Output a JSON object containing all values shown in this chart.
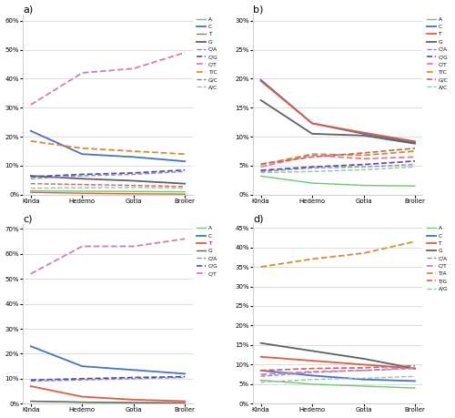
{
  "x_labels": [
    "Kinda",
    "Hedemo",
    "Gotia",
    "Broiler"
  ],
  "subplot_a": {
    "title": "a)",
    "ylim": [
      0,
      0.62
    ],
    "yticks": [
      0.0,
      0.1,
      0.2,
      0.3,
      0.4,
      0.5,
      0.6
    ],
    "ytick_labels": [
      "0%",
      "10%",
      "20%",
      "30%",
      "40%",
      "50%",
      "60%"
    ],
    "series": {
      "A": {
        "values": [
          0.013,
          0.012,
          0.011,
          0.01
        ],
        "color": "#6dc96d",
        "ls": "solid",
        "lw": 1.0
      },
      "C": {
        "values": [
          0.22,
          0.14,
          0.13,
          0.115
        ],
        "color": "#4472c4",
        "ls": "solid",
        "lw": 1.3
      },
      "T": {
        "values": [
          0.008,
          0.005,
          0.003,
          0.002
        ],
        "color": "#e05c3c",
        "ls": "solid",
        "lw": 1.0
      },
      "G": {
        "values": [
          0.065,
          0.055,
          0.048,
          0.038
        ],
        "color": "#606060",
        "ls": "solid",
        "lw": 1.3
      },
      "C/A": {
        "values": [
          0.055,
          0.065,
          0.07,
          0.08
        ],
        "color": "#8888dd",
        "ls": "dashed",
        "lw": 1.0
      },
      "C/G": {
        "values": [
          0.062,
          0.07,
          0.075,
          0.085
        ],
        "color": "#505090",
        "ls": "dashed",
        "lw": 1.2
      },
      "C/T": {
        "values": [
          0.31,
          0.42,
          0.435,
          0.49
        ],
        "color": "#d080b0",
        "ls": "dashed",
        "lw": 1.3
      },
      "T/C": {
        "values": [
          0.185,
          0.16,
          0.15,
          0.14
        ],
        "color": "#d09030",
        "ls": "dashed",
        "lw": 1.3
      },
      "G/C": {
        "values": [
          0.038,
          0.035,
          0.032,
          0.028
        ],
        "color": "#d06060",
        "ls": "dashed",
        "lw": 1.0
      },
      "A/C": {
        "values": [
          0.022,
          0.024,
          0.025,
          0.023
        ],
        "color": "#90c890",
        "ls": "dashed",
        "lw": 1.0
      }
    }
  },
  "subplot_b": {
    "title": "b)",
    "ylim": [
      0,
      0.31
    ],
    "yticks": [
      0.0,
      0.05,
      0.1,
      0.15,
      0.2,
      0.25,
      0.3
    ],
    "ytick_labels": [
      "0%",
      "5%",
      "10%",
      "15%",
      "20%",
      "25%",
      "30%"
    ],
    "series": {
      "A": {
        "values": [
          0.032,
          0.02,
          0.016,
          0.015
        ],
        "color": "#6dc96d",
        "ls": "solid",
        "lw": 1.0
      },
      "C": {
        "values": [
          0.198,
          0.123,
          0.105,
          0.09
        ],
        "color": "#4472c4",
        "ls": "solid",
        "lw": 1.3
      },
      "T": {
        "values": [
          0.196,
          0.123,
          0.107,
          0.092
        ],
        "color": "#e05c3c",
        "ls": "solid",
        "lw": 1.3
      },
      "G": {
        "values": [
          0.163,
          0.105,
          0.102,
          0.088
        ],
        "color": "#606060",
        "ls": "solid",
        "lw": 1.3
      },
      "C/A": {
        "values": [
          0.04,
          0.046,
          0.048,
          0.052
        ],
        "color": "#8888dd",
        "ls": "dashed",
        "lw": 1.0
      },
      "C/G": {
        "values": [
          0.042,
          0.048,
          0.052,
          0.058
        ],
        "color": "#505090",
        "ls": "dashed",
        "lw": 1.2
      },
      "C/T": {
        "values": [
          0.048,
          0.068,
          0.062,
          0.065
        ],
        "color": "#d080b0",
        "ls": "dashed",
        "lw": 1.3
      },
      "T/C": {
        "values": [
          0.052,
          0.07,
          0.068,
          0.075
        ],
        "color": "#d09030",
        "ls": "dashed",
        "lw": 1.3
      },
      "G/C": {
        "values": [
          0.053,
          0.065,
          0.072,
          0.08
        ],
        "color": "#d06060",
        "ls": "dashed",
        "lw": 1.2
      },
      "A/C": {
        "values": [
          0.038,
          0.04,
          0.043,
          0.048
        ],
        "color": "#90c890",
        "ls": "dashed",
        "lw": 1.0
      }
    }
  },
  "subplot_c": {
    "title": "c)",
    "ylim": [
      0,
      0.72
    ],
    "yticks": [
      0.0,
      0.1,
      0.2,
      0.3,
      0.4,
      0.5,
      0.6,
      0.7
    ],
    "ytick_labels": [
      "0%",
      "10%",
      "20%",
      "30%",
      "40%",
      "50%",
      "60%",
      "70%"
    ],
    "series": {
      "A": {
        "values": [
          0.01,
          0.006,
          0.004,
          0.003
        ],
        "color": "#6dc96d",
        "ls": "solid",
        "lw": 1.0
      },
      "C": {
        "values": [
          0.23,
          0.15,
          0.135,
          0.12
        ],
        "color": "#4472c4",
        "ls": "solid",
        "lw": 1.3
      },
      "T": {
        "values": [
          0.07,
          0.028,
          0.016,
          0.01
        ],
        "color": "#e05c3c",
        "ls": "solid",
        "lw": 1.3
      },
      "G": {
        "values": [
          0.01,
          0.006,
          0.004,
          0.003
        ],
        "color": "#606060",
        "ls": "solid",
        "lw": 1.0
      },
      "C/A": {
        "values": [
          0.09,
          0.095,
          0.1,
          0.105
        ],
        "color": "#8888dd",
        "ls": "dashed",
        "lw": 1.0
      },
      "C/G": {
        "values": [
          0.095,
          0.1,
          0.105,
          0.108
        ],
        "color": "#505090",
        "ls": "dashed",
        "lw": 1.2
      },
      "C/T": {
        "values": [
          0.52,
          0.63,
          0.63,
          0.66
        ],
        "color": "#d080b0",
        "ls": "dashed",
        "lw": 1.3
      }
    }
  },
  "subplot_d": {
    "title": "d)",
    "ylim": [
      0,
      0.46
    ],
    "yticks": [
      0.0,
      0.05,
      0.1,
      0.15,
      0.2,
      0.25,
      0.3,
      0.35,
      0.4,
      0.45
    ],
    "ytick_labels": [
      "0%",
      "5%",
      "10%",
      "15%",
      "20%",
      "25%",
      "30%",
      "35%",
      "40%",
      "45%"
    ],
    "series": {
      "A": {
        "values": [
          0.06,
          0.05,
          0.045,
          0.04
        ],
        "color": "#6dc96d",
        "ls": "solid",
        "lw": 1.0
      },
      "C": {
        "values": [
          0.085,
          0.072,
          0.062,
          0.058
        ],
        "color": "#4472c4",
        "ls": "solid",
        "lw": 1.3
      },
      "T": {
        "values": [
          0.12,
          0.11,
          0.1,
          0.09
        ],
        "color": "#e05c3c",
        "ls": "solid",
        "lw": 1.3
      },
      "G": {
        "values": [
          0.155,
          0.135,
          0.115,
          0.09
        ],
        "color": "#606060",
        "ls": "solid",
        "lw": 1.3
      },
      "C/A": {
        "values": [
          0.07,
          0.08,
          0.085,
          0.09
        ],
        "color": "#8888dd",
        "ls": "dashed",
        "lw": 1.0
      },
      "C/T": {
        "values": [
          0.075,
          0.082,
          0.085,
          0.092
        ],
        "color": "#d080b0",
        "ls": "dashed",
        "lw": 1.3
      },
      "T/A": {
        "values": [
          0.35,
          0.37,
          0.385,
          0.415
        ],
        "color": "#d09030",
        "ls": "dashed",
        "lw": 1.3
      },
      "T/G": {
        "values": [
          0.085,
          0.09,
          0.092,
          0.097
        ],
        "color": "#d06060",
        "ls": "dashed",
        "lw": 1.2
      },
      "A/G": {
        "values": [
          0.055,
          0.062,
          0.065,
          0.07
        ],
        "color": "#90c890",
        "ls": "dashed",
        "lw": 1.0
      }
    }
  },
  "legend_ab": [
    "A",
    "C",
    "T",
    "G",
    "C/A",
    "C/G",
    "C/T",
    "T/C",
    "G/C",
    "A/C"
  ],
  "legend_c": [
    "A",
    "C",
    "T",
    "G",
    "C/A",
    "C/G",
    "C/T"
  ],
  "legend_d": [
    "A",
    "C",
    "T",
    "G",
    "C/A",
    "C/T",
    "T/A",
    "T/G",
    "A/G"
  ]
}
